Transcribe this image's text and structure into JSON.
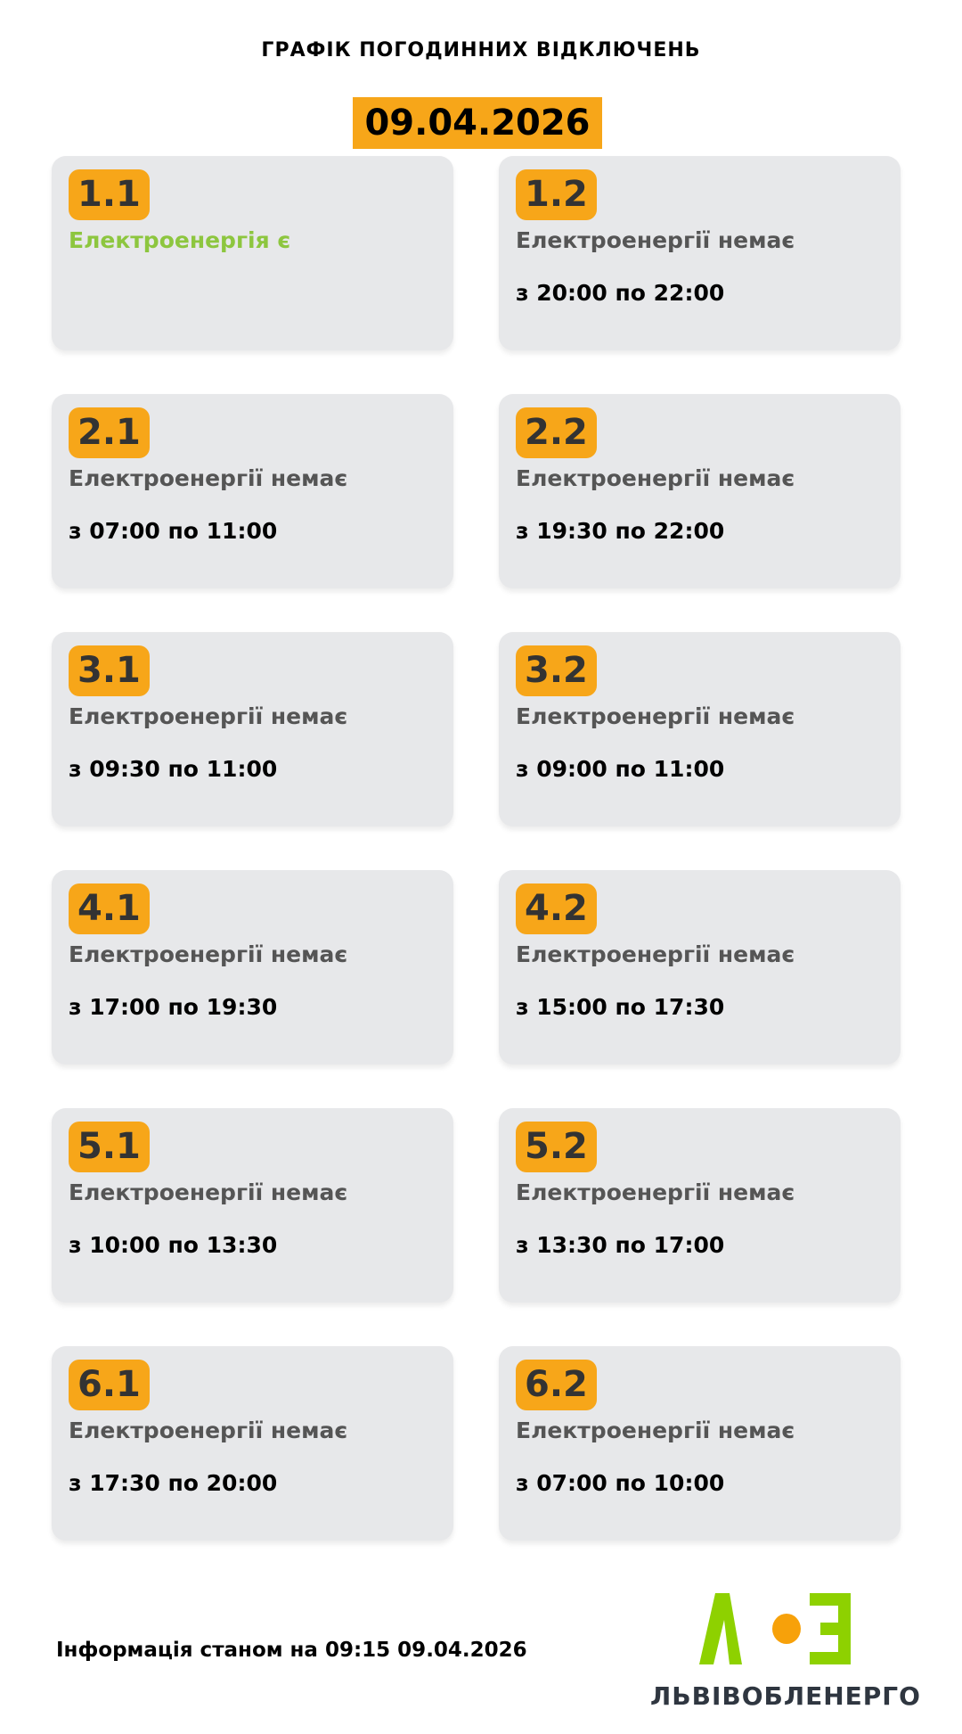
{
  "header": {
    "title": "ГРАФІК ПОГОДИННИХ ВІДКЛЮЧЕНЬ",
    "date": "09.04.2026"
  },
  "groups": [
    {
      "id": "1.1",
      "status": "Електроенергія є",
      "time": "",
      "power_on": true
    },
    {
      "id": "1.2",
      "status": "Електроенергії немає",
      "time": "з 20:00 по 22:00",
      "power_on": false
    },
    {
      "id": "2.1",
      "status": "Електроенергії немає",
      "time": "з 07:00 по 11:00",
      "power_on": false
    },
    {
      "id": "2.2",
      "status": "Електроенергії немає",
      "time": "з 19:30 по 22:00",
      "power_on": false
    },
    {
      "id": "3.1",
      "status": "Електроенергії немає",
      "time": "з 09:30 по 11:00",
      "power_on": false
    },
    {
      "id": "3.2",
      "status": "Електроенергії немає",
      "time": "з 09:00 по 11:00",
      "power_on": false
    },
    {
      "id": "4.1",
      "status": "Електроенергії немає",
      "time": "з 17:00 по 19:30",
      "power_on": false
    },
    {
      "id": "4.2",
      "status": "Електроенергії немає",
      "time": "з 15:00 по 17:30",
      "power_on": false
    },
    {
      "id": "5.1",
      "status": "Електроенергії немає",
      "time": "з 10:00 по 13:30",
      "power_on": false
    },
    {
      "id": "5.2",
      "status": "Електроенергії немає",
      "time": "з 13:30 по 17:00",
      "power_on": false
    },
    {
      "id": "6.1",
      "status": "Електроенергії немає",
      "time": "з 17:30 по 20:00",
      "power_on": false
    },
    {
      "id": "6.2",
      "status": "Електроенергії немає",
      "time": "з 07:00 по 10:00",
      "power_on": false
    }
  ],
  "footer": {
    "info": "Інформація станом на 09:15 09.04.2026",
    "logo_text": "ЛЬВІВОБЛЕНЕРГО"
  },
  "colors": {
    "accent": "#f7a619",
    "power_on": "#8dc63f",
    "logo_green": "#8ed100",
    "logo_orange": "#f7a10a"
  }
}
